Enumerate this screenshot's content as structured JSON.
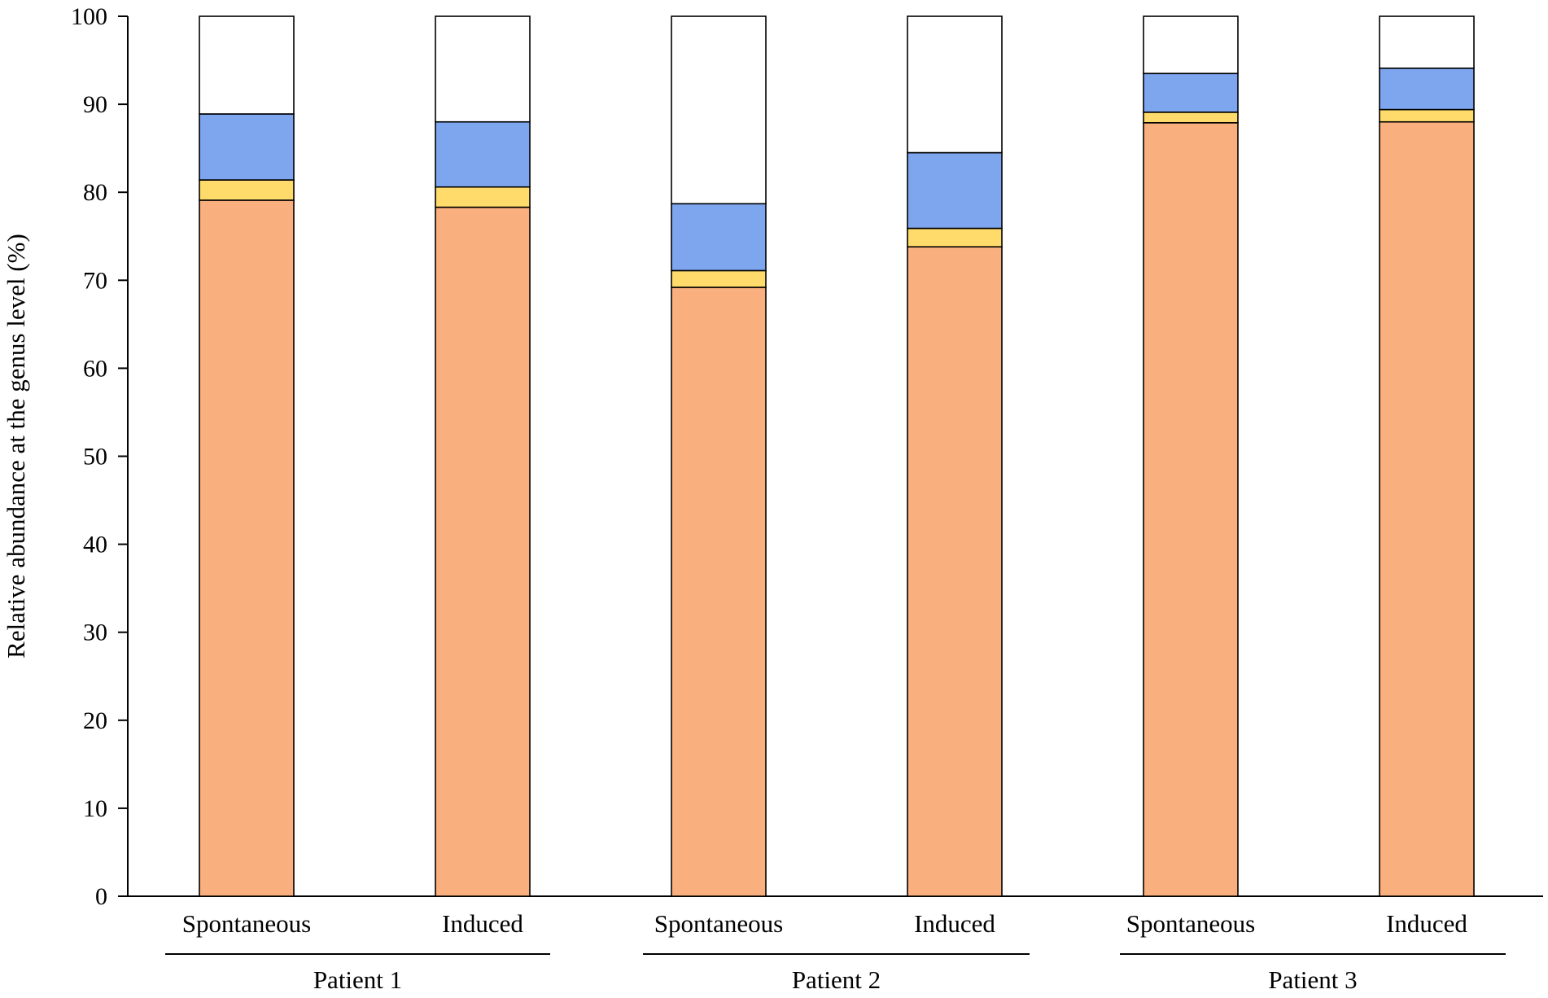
{
  "chart_data": {
    "type": "bar",
    "stacked": true,
    "title": "",
    "xlabel": "",
    "ylabel": "Relative abundance at the genus level (%)",
    "ylim": [
      0,
      100
    ],
    "yticks": [
      0,
      10,
      20,
      30,
      40,
      50,
      60,
      70,
      80,
      90,
      100
    ],
    "grid": false,
    "legend": "none",
    "categories": [
      "Spontaneous",
      "Induced",
      "Spontaneous",
      "Induced",
      "Spontaneous",
      "Induced"
    ],
    "groups": [
      {
        "label": "Patient 1",
        "categories": [
          0,
          1
        ]
      },
      {
        "label": "Patient 2",
        "categories": [
          2,
          3
        ]
      },
      {
        "label": "Patient 3",
        "categories": [
          4,
          5
        ]
      }
    ],
    "series": [
      {
        "name": "orange",
        "color": "#FAAF7E",
        "values": [
          79.1,
          78.3,
          69.2,
          73.8,
          87.9,
          88.0
        ]
      },
      {
        "name": "yellow",
        "color": "#FEDB6A",
        "values": [
          2.3,
          2.3,
          1.9,
          2.1,
          1.2,
          1.4
        ]
      },
      {
        "name": "blue",
        "color": "#7EA6EF",
        "values": [
          7.5,
          7.4,
          7.6,
          8.6,
          4.4,
          4.7
        ]
      },
      {
        "name": "white",
        "color": "#FFFFFF",
        "values": [
          11.1,
          12.0,
          21.3,
          15.5,
          6.5,
          5.9
        ]
      }
    ]
  }
}
